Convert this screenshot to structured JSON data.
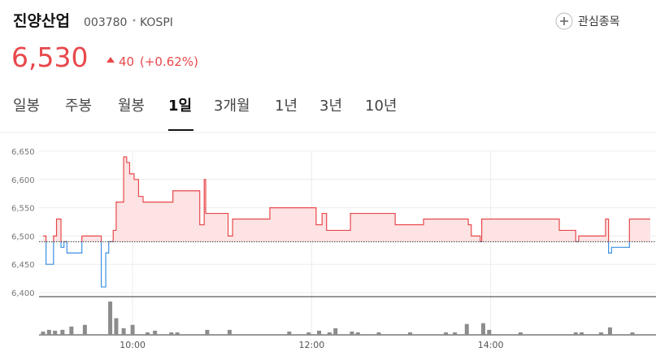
{
  "header": {
    "name": "진양산업",
    "code": "003780",
    "market": "KOSPI",
    "watch_button": "관심종목",
    "price": "6,530",
    "change": "40",
    "change_pct": "(+0.62%)"
  },
  "tabs": {
    "items": [
      "일봉",
      "주봉",
      "월봉",
      "1일",
      "3개월",
      "1년",
      "3년",
      "10년"
    ],
    "active": 3
  },
  "chart_data": {
    "type": "line",
    "x": [
      "09:00",
      "09:02",
      "09:05",
      "09:07",
      "09:09",
      "09:10",
      "09:12",
      "09:14",
      "09:16",
      "09:19",
      "09:26",
      "09:38",
      "09:39",
      "09:42",
      "09:44",
      "09:47",
      "09:49",
      "09:53",
      "09:54",
      "09:56",
      "09:58",
      "10:01",
      "10:04",
      "10:07",
      "10:26",
      "10:27",
      "10:44",
      "10:45",
      "10:48",
      "10:49",
      "11:01",
      "11:04",
      "11:07",
      "11:31",
      "11:32",
      "12:01",
      "12:03",
      "12:06",
      "12:07",
      "12:10",
      "12:25",
      "12:26",
      "12:53",
      "12:56",
      "13:15",
      "13:31",
      "13:45",
      "13:47",
      "13:53",
      "13:54",
      "14:45",
      "14:46",
      "14:56",
      "14:57",
      "14:59",
      "15:15",
      "15:17",
      "15:19",
      "15:21",
      "15:32",
      "15:33",
      "15:47"
    ],
    "values": [
      6500,
      6450,
      6450,
      6500,
      6530,
      6530,
      6480,
      6490,
      6470,
      6470,
      6500,
      6500,
      6410,
      6470,
      6490,
      6510,
      6560,
      6560,
      6640,
      6630,
      6610,
      6600,
      6570,
      6560,
      6560,
      6580,
      6580,
      6520,
      6600,
      6540,
      6540,
      6500,
      6530,
      6530,
      6550,
      6550,
      6520,
      6520,
      6540,
      6510,
      6510,
      6540,
      6540,
      6520,
      6530,
      6530,
      6520,
      6500,
      6490,
      6530,
      6530,
      6510,
      6510,
      6490,
      6500,
      6500,
      6530,
      6470,
      6480,
      6480,
      6530,
      6530
    ],
    "baseline": 6490,
    "up_color": "#e8484b",
    "down_color": "#3b8fe0",
    "fill_color": "#fde3e3",
    "xlim": [
      "09:00",
      "15:47"
    ],
    "xticks": [
      "10:00",
      "12:00",
      "14:00"
    ],
    "ylim": [
      6400,
      6650
    ],
    "yticks": [
      {
        "value": 6400,
        "label": "6,400"
      },
      {
        "value": 6450,
        "label": "6,450"
      },
      {
        "value": 6500,
        "label": "6,500"
      },
      {
        "value": 6550,
        "label": "6,550"
      },
      {
        "value": 6600,
        "label": "6,600"
      },
      {
        "value": 6650,
        "label": "6,650"
      }
    ],
    "grid": true,
    "volume": {
      "color": "#8c8c8c",
      "x": [
        "09:00",
        "09:04",
        "09:08",
        "09:13",
        "09:19",
        "09:28",
        "09:45",
        "09:49",
        "09:54",
        "10:00",
        "10:10",
        "10:15",
        "10:26",
        "10:30",
        "10:50",
        "11:05",
        "11:45",
        "11:58",
        "12:05",
        "12:12",
        "12:16",
        "12:27",
        "12:31",
        "12:45",
        "13:06",
        "13:30",
        "13:36",
        "13:44",
        "13:55",
        "13:59",
        "14:20",
        "14:57",
        "15:01",
        "15:14",
        "15:20",
        "15:35"
      ],
      "values": [
        4,
        6,
        5,
        6,
        10,
        12,
        40,
        20,
        8,
        12,
        3,
        5,
        3,
        3,
        6,
        6,
        4,
        3,
        5,
        3,
        8,
        4,
        3,
        3,
        3,
        3,
        3,
        13,
        14,
        6,
        3,
        3,
        3,
        3,
        9,
        3
      ]
    }
  }
}
